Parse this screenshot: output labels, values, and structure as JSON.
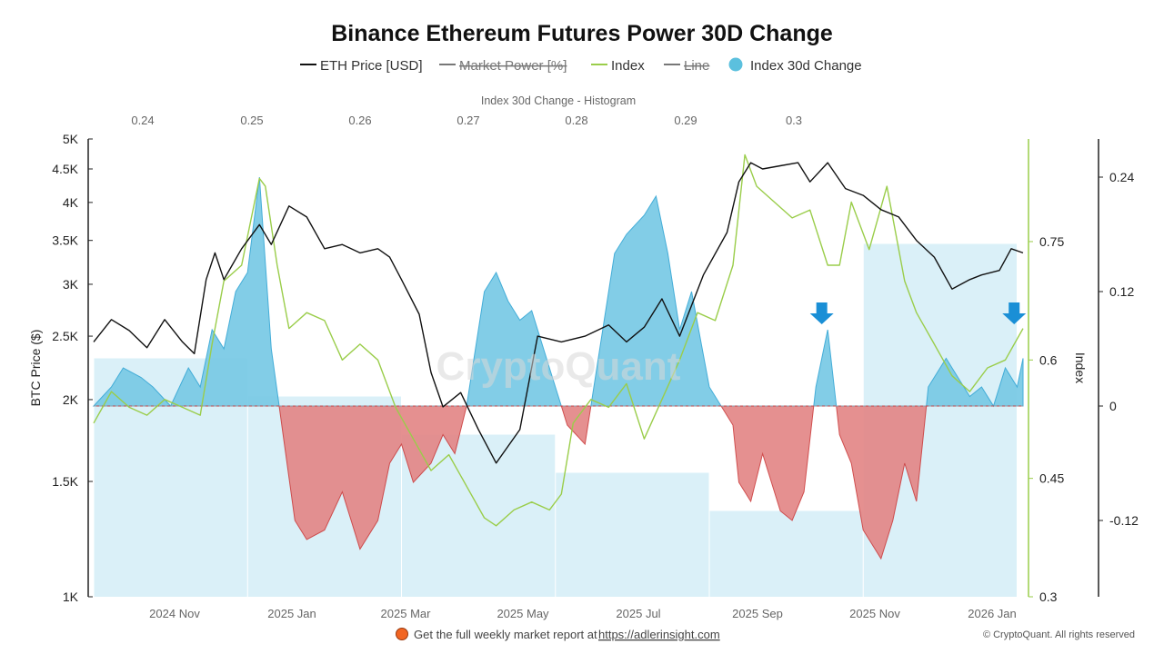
{
  "chart_data": {
    "type": "line",
    "title": "Binance Ethereum Futures Power 30D Change",
    "legend": [
      {
        "label": "ETH Price [USD]",
        "color": "#111111",
        "hidden": false
      },
      {
        "label": "Market Power [%]",
        "color": "#777777",
        "hidden": true
      },
      {
        "label": "Index",
        "color": "#9acd4a",
        "hidden": false
      },
      {
        "label": "Line",
        "color": "#777777",
        "hidden": true
      },
      {
        "label": "Index 30d Change",
        "color": "#5bc0de",
        "hidden": false
      }
    ],
    "x_ticks": [
      "2024 Nov",
      "2025 Jan",
      "2025 Mar",
      "2025 May",
      "2025 Jul",
      "2025 Sep",
      "2025 Nov",
      "2026 Jan"
    ],
    "histogram": {
      "title": "Index 30d Change - Histogram",
      "ticks": [
        "0.24",
        "0.25",
        "0.26",
        "0.27",
        "0.28",
        "0.29",
        "0.3"
      ]
    },
    "left_axis": {
      "label": "BTC Price ($)",
      "scale": "log",
      "ticks": [
        "5K",
        "4.5K",
        "4K",
        "3.5K",
        "3K",
        "2.5K",
        "2K",
        "1.5K",
        "1K"
      ],
      "tick_values": [
        5000,
        4500,
        4000,
        3500,
        3000,
        2500,
        2000,
        1500,
        1000
      ],
      "range": [
        1000,
        5000
      ]
    },
    "index_axis": {
      "label": "Index",
      "ticks": [
        "0.75",
        "0.6",
        "0.45",
        "0.3"
      ],
      "tick_values": [
        0.75,
        0.6,
        0.45,
        0.3
      ],
      "range": [
        0.3,
        0.88
      ]
    },
    "change_axis": {
      "ticks": [
        "0.24",
        "0.12",
        "0",
        "-0.12"
      ],
      "tick_values": [
        0.24,
        0.12,
        0,
        -0.12
      ],
      "range": [
        -0.2,
        0.28
      ]
    },
    "time_range": [
      0,
      15.7
    ],
    "eth_price": {
      "name": "ETH Price [USD]",
      "t": [
        0,
        0.3,
        0.6,
        0.9,
        1.2,
        1.5,
        1.7,
        1.9,
        2.05,
        2.2,
        2.5,
        2.8,
        3.0,
        3.3,
        3.6,
        3.9,
        4.2,
        4.5,
        4.8,
        5.0,
        5.2,
        5.5,
        5.7,
        5.9,
        6.2,
        6.5,
        6.8,
        7.2,
        7.5,
        7.9,
        8.3,
        8.7,
        9.0,
        9.3,
        9.6,
        9.9,
        10.3,
        10.7,
        10.9,
        11.1,
        11.3,
        11.6,
        11.9,
        12.1,
        12.4,
        12.7,
        13.0,
        13.3,
        13.6,
        13.9,
        14.2,
        14.5,
        14.8,
        15.0,
        15.3,
        15.5,
        15.7
      ],
      "values": [
        2450,
        2650,
        2550,
        2400,
        2650,
        2450,
        2350,
        3050,
        3350,
        3050,
        3400,
        3700,
        3450,
        3950,
        3800,
        3400,
        3450,
        3350,
        3400,
        3300,
        3050,
        2700,
        2200,
        1950,
        2050,
        1800,
        1600,
        1800,
        2500,
        2450,
        2500,
        2600,
        2450,
        2580,
        2850,
        2500,
        3100,
        3600,
        4300,
        4600,
        4500,
        4550,
        4600,
        4300,
        4600,
        4200,
        4100,
        3900,
        3800,
        3500,
        3300,
        2950,
        3050,
        3100,
        3150,
        3400,
        3350
      ]
    },
    "index": {
      "name": "Index",
      "t": [
        0,
        0.3,
        0.6,
        0.9,
        1.2,
        1.5,
        1.8,
        2.0,
        2.2,
        2.5,
        2.8,
        2.9,
        3.1,
        3.3,
        3.6,
        3.9,
        4.2,
        4.5,
        4.8,
        5.1,
        5.4,
        5.7,
        6.0,
        6.3,
        6.6,
        6.8,
        7.1,
        7.4,
        7.7,
        7.9,
        8.1,
        8.4,
        8.7,
        9.0,
        9.3,
        9.6,
        9.9,
        10.2,
        10.5,
        10.8,
        11.0,
        11.2,
        11.5,
        11.8,
        12.1,
        12.4,
        12.6,
        12.8,
        13.1,
        13.4,
        13.7,
        13.9,
        14.2,
        14.5,
        14.8,
        15.1,
        15.4,
        15.7
      ],
      "values": [
        0.52,
        0.56,
        0.54,
        0.53,
        0.55,
        0.54,
        0.53,
        0.62,
        0.7,
        0.72,
        0.83,
        0.82,
        0.72,
        0.64,
        0.66,
        0.65,
        0.6,
        0.62,
        0.6,
        0.54,
        0.5,
        0.46,
        0.48,
        0.44,
        0.4,
        0.39,
        0.41,
        0.42,
        0.41,
        0.43,
        0.52,
        0.55,
        0.54,
        0.57,
        0.5,
        0.55,
        0.6,
        0.66,
        0.65,
        0.72,
        0.86,
        0.82,
        0.8,
        0.78,
        0.79,
        0.72,
        0.72,
        0.8,
        0.74,
        0.82,
        0.7,
        0.66,
        0.62,
        0.58,
        0.56,
        0.59,
        0.6,
        0.64
      ]
    },
    "index_30d_change": {
      "name": "Index 30d Change",
      "t": [
        0,
        0.3,
        0.5,
        0.8,
        1.0,
        1.3,
        1.6,
        1.8,
        2.0,
        2.2,
        2.4,
        2.6,
        2.8,
        2.9,
        3.0,
        3.2,
        3.4,
        3.6,
        3.9,
        4.2,
        4.5,
        4.8,
        5.0,
        5.2,
        5.4,
        5.7,
        5.9,
        6.1,
        6.3,
        6.6,
        6.8,
        7.0,
        7.2,
        7.4,
        7.6,
        7.8,
        8.0,
        8.3,
        8.6,
        8.8,
        9.0,
        9.3,
        9.5,
        9.7,
        9.9,
        10.1,
        10.4,
        10.6,
        10.8,
        10.9,
        11.1,
        11.3,
        11.6,
        11.8,
        12.0,
        12.2,
        12.4,
        12.6,
        12.8,
        13.0,
        13.3,
        13.5,
        13.7,
        13.9,
        14.1,
        14.4,
        14.6,
        14.8,
        15.0,
        15.2,
        15.4,
        15.6,
        15.7
      ],
      "values": [
        0,
        0.02,
        0.04,
        0.03,
        0.02,
        0,
        0.04,
        0.02,
        0.08,
        0.06,
        0.12,
        0.14,
        0.24,
        0.15,
        0.06,
        -0.03,
        -0.12,
        -0.14,
        -0.13,
        -0.09,
        -0.15,
        -0.12,
        -0.06,
        -0.04,
        -0.08,
        -0.06,
        -0.03,
        -0.05,
        0,
        0.12,
        0.14,
        0.11,
        0.09,
        0.1,
        0.06,
        0.02,
        -0.02,
        -0.04,
        0.08,
        0.16,
        0.18,
        0.2,
        0.22,
        0.16,
        0.08,
        0.12,
        0.02,
        0,
        -0.02,
        -0.08,
        -0.1,
        -0.05,
        -0.11,
        -0.12,
        -0.09,
        0.02,
        0.08,
        -0.03,
        -0.06,
        -0.13,
        -0.16,
        -0.12,
        -0.06,
        -0.1,
        0.02,
        0.05,
        0.03,
        0.01,
        0.02,
        0,
        0.04,
        0.02,
        0.05
      ]
    },
    "histogram_bars": {
      "name": "Index 30d Change - Histogram",
      "bars": [
        {
          "t0": 0.0,
          "t1": 2.6,
          "value": 0.05
        },
        {
          "t0": 2.6,
          "t1": 5.2,
          "value": 0.01
        },
        {
          "t0": 5.2,
          "t1": 7.8,
          "value": -0.03
        },
        {
          "t0": 7.8,
          "t1": 10.4,
          "value": -0.07
        },
        {
          "t0": 10.4,
          "t1": 13.0,
          "value": -0.11
        },
        {
          "t0": 13.0,
          "t1": 15.6,
          "value": 0.17
        }
      ]
    },
    "annotations": [
      {
        "type": "arrow-down",
        "t": 12.3,
        "value": 0.08,
        "color": "#1a8fd6"
      },
      {
        "type": "arrow-down",
        "t": 15.55,
        "value": 0.08,
        "color": "#1a8fd6"
      }
    ],
    "watermark": "CryptoQuant"
  },
  "footer": {
    "text": "Get the full weekly market report at",
    "link": "https://adlerinsight.com",
    "copyright": "© CryptoQuant. All rights reserved"
  }
}
